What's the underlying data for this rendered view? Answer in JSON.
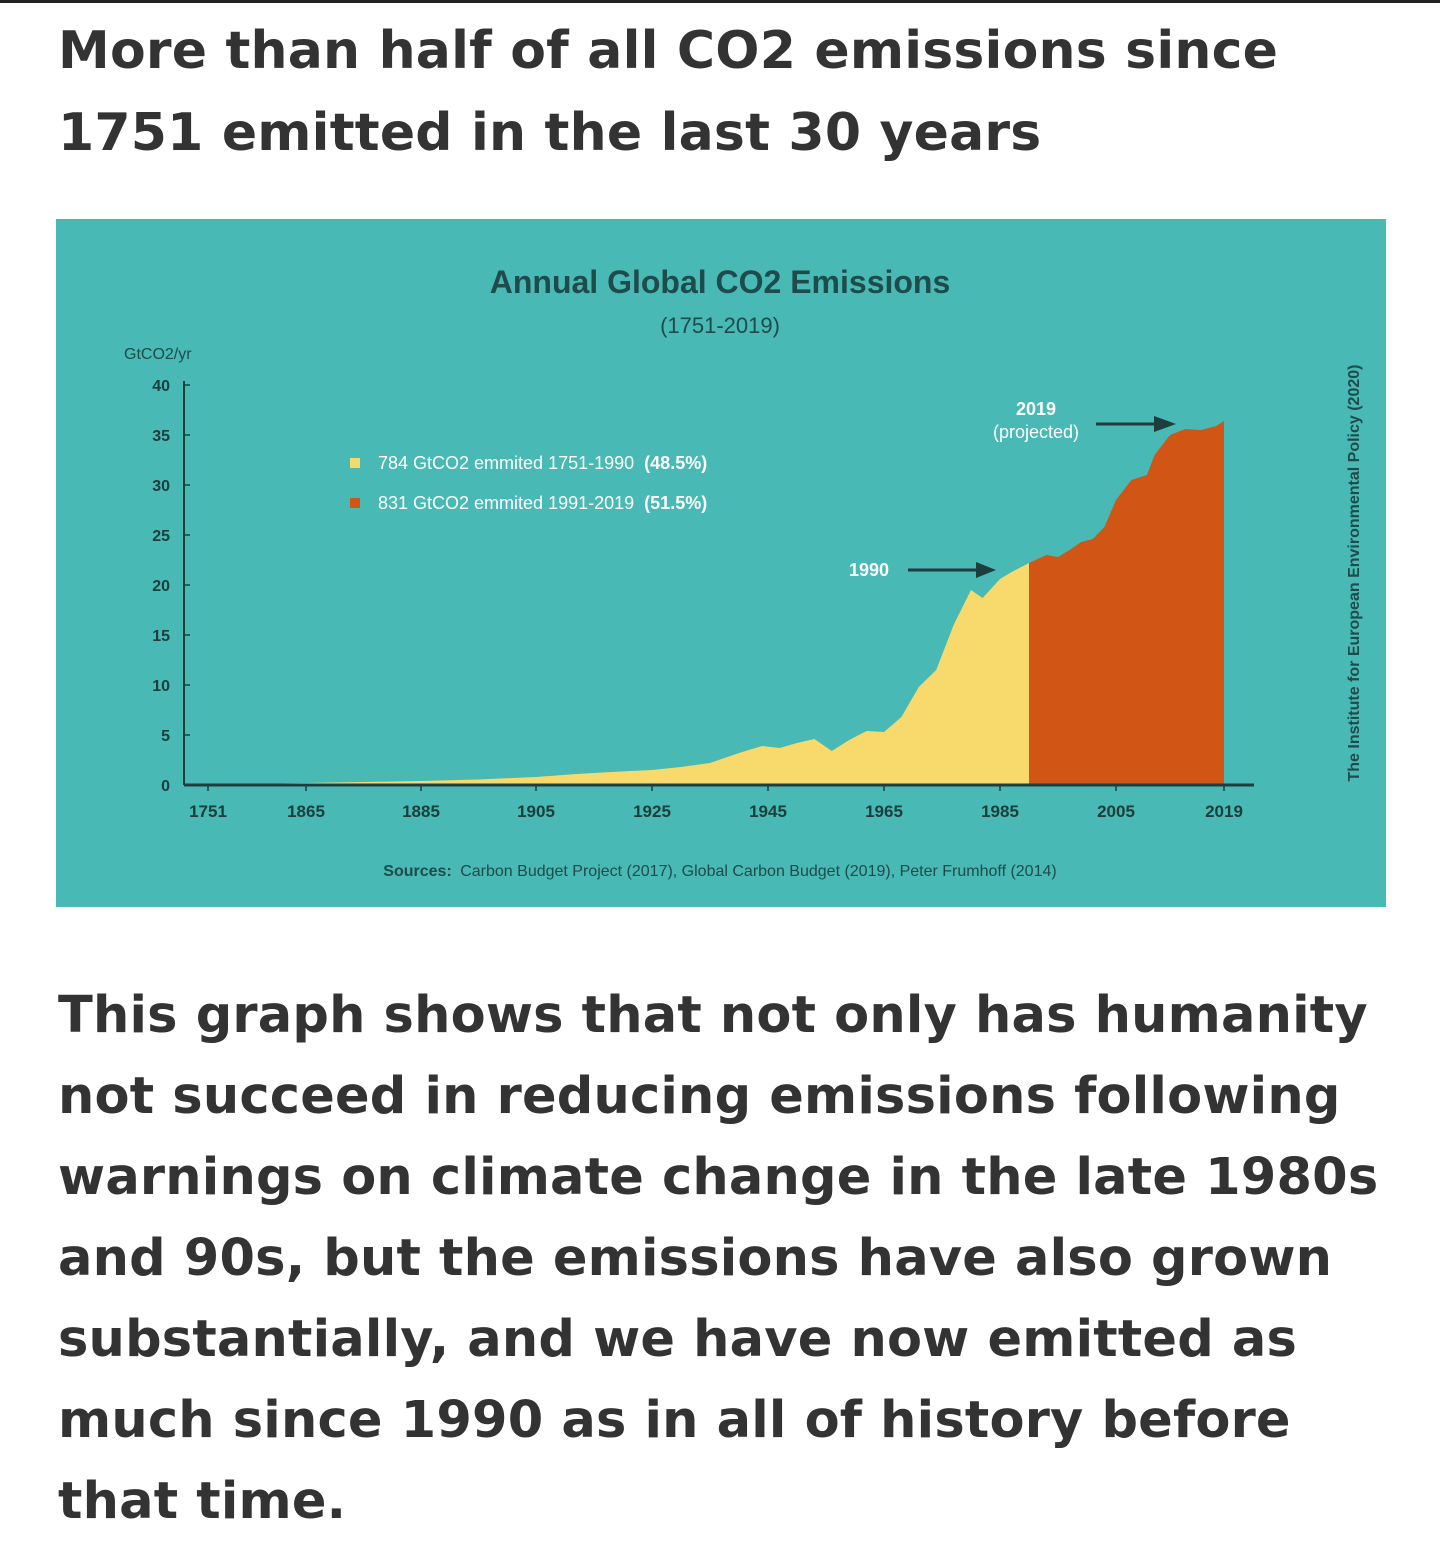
{
  "headline": "More than half of all CO2 emissions since 1751 emitted in the last 30 years",
  "body_text": "This graph shows that not only has humanity not succeed in reducing emissions following warnings on climate change in the late 1980s and 90s, but the emissions have also grown substantially, and we have now emitted as much since 1990 as in all of history before that time.",
  "colors": {
    "panel_bg": "#48b9b4",
    "series_pre1990": "#f8d96c",
    "series_post1990": "#d15514",
    "title_text": "#1e4b4b",
    "axis": "#1e3d3d"
  },
  "chart_data": {
    "type": "area",
    "title": "Annual Global CO2 Emissions",
    "subtitle": "(1751-2019)",
    "ylabel": "GtCO2/yr",
    "ylim": [
      0,
      40
    ],
    "yticks": [
      0,
      5,
      10,
      15,
      20,
      25,
      30,
      35,
      40
    ],
    "xticks": [
      "1751",
      "1865",
      "1885",
      "1905",
      "1925",
      "1945",
      "1965",
      "1985",
      "2005",
      "2019"
    ],
    "legend": [
      {
        "label": "784 GtCO2 emmited 1751-1990",
        "share": "(48.5%)",
        "color": "#f8d96c"
      },
      {
        "label": "831 GtCO2 emmited 1991-2019",
        "share": "(51.5%)",
        "color": "#d15514"
      }
    ],
    "annotations": [
      {
        "label": "1990",
        "x": 1990
      },
      {
        "label": "2019",
        "sublabel": "(projected)",
        "x": 2019
      }
    ],
    "side_credit": "The Institute for European Environmental Policy (2020)",
    "sources_label": "Sources:",
    "sources_text": "Carbon Budget Project (2017), Global Carbon Budget (2019), Peter Frumhoff (2014)",
    "series": [
      {
        "name": "1751-1990",
        "color": "#f8d96c",
        "points": [
          [
            1751,
            0.01
          ],
          [
            1865,
            0.2
          ],
          [
            1885,
            0.4
          ],
          [
            1895,
            0.55
          ],
          [
            1905,
            0.8
          ],
          [
            1912,
            1.1
          ],
          [
            1918,
            1.3
          ],
          [
            1925,
            1.5
          ],
          [
            1930,
            1.8
          ],
          [
            1935,
            2.2
          ],
          [
            1940,
            3.2
          ],
          [
            1944,
            3.9
          ],
          [
            1947,
            3.7
          ],
          [
            1950,
            4.2
          ],
          [
            1953,
            4.6
          ],
          [
            1956,
            3.4
          ],
          [
            1959,
            4.5
          ],
          [
            1962,
            5.4
          ],
          [
            1965,
            5.3
          ],
          [
            1968,
            6.8
          ],
          [
            1971,
            9.8
          ],
          [
            1974,
            11.5
          ],
          [
            1977,
            16
          ],
          [
            1980,
            19.5
          ],
          [
            1982,
            18.7
          ],
          [
            1985,
            20.6
          ],
          [
            1987,
            21.3
          ],
          [
            1990,
            22.2
          ]
        ]
      },
      {
        "name": "1991-2019",
        "color": "#d15514",
        "points": [
          [
            1990,
            22.2
          ],
          [
            1993,
            23
          ],
          [
            1995,
            22.8
          ],
          [
            1997,
            23.5
          ],
          [
            1999,
            24.3
          ],
          [
            2001,
            24.6
          ],
          [
            2003,
            25.8
          ],
          [
            2005,
            28.5
          ],
          [
            2007,
            30.5
          ],
          [
            2009,
            31
          ],
          [
            2010,
            33
          ],
          [
            2012,
            35
          ],
          [
            2014,
            35.6
          ],
          [
            2016,
            35.5
          ],
          [
            2018,
            35.9
          ],
          [
            2019,
            36.4
          ]
        ]
      }
    ]
  }
}
